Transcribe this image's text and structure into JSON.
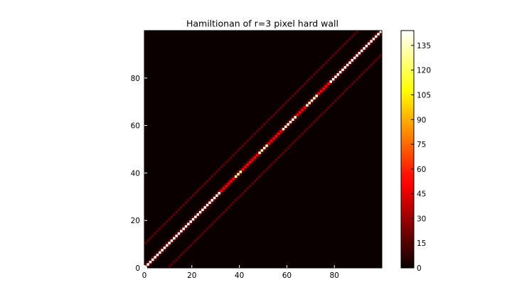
{
  "chart_data": {
    "type": "heatmap",
    "title": "Hamiltionan of r=3 pixel hard wall",
    "xlabel": "",
    "ylabel": "",
    "grid": false,
    "size": 100,
    "xlim": [
      0,
      100
    ],
    "ylim": [
      0,
      100
    ],
    "x_ticks": [
      0,
      20,
      40,
      60,
      80
    ],
    "y_ticks": [
      0,
      20,
      40,
      60,
      80
    ],
    "colormap": "hot",
    "colorbar": {
      "range": [
        0,
        144
      ],
      "ticks": [
        0,
        15,
        30,
        45,
        60,
        75,
        90,
        105,
        120,
        135
      ]
    },
    "background_value": 0,
    "diagonal": {
      "default_value": 144,
      "segments": [
        {
          "start": 32,
          "end": 37,
          "value": 50
        },
        {
          "start": 38,
          "end": 40,
          "value": 130
        },
        {
          "start": 41,
          "end": 47,
          "value": 52
        },
        {
          "start": 48,
          "end": 51,
          "value": 135
        },
        {
          "start": 52,
          "end": 57,
          "value": 52
        },
        {
          "start": 58,
          "end": 63,
          "value": 140
        },
        {
          "start": 64,
          "end": 67,
          "value": 52
        },
        {
          "start": 68,
          "end": 72,
          "value": 138
        },
        {
          "start": 73,
          "end": 77,
          "value": 52
        }
      ]
    },
    "off_diagonals": [
      {
        "offset": 1,
        "value": 16
      },
      {
        "offset": -1,
        "value": 16
      },
      {
        "offset": 10,
        "value": 16
      },
      {
        "offset": -10,
        "value": 16
      }
    ]
  }
}
